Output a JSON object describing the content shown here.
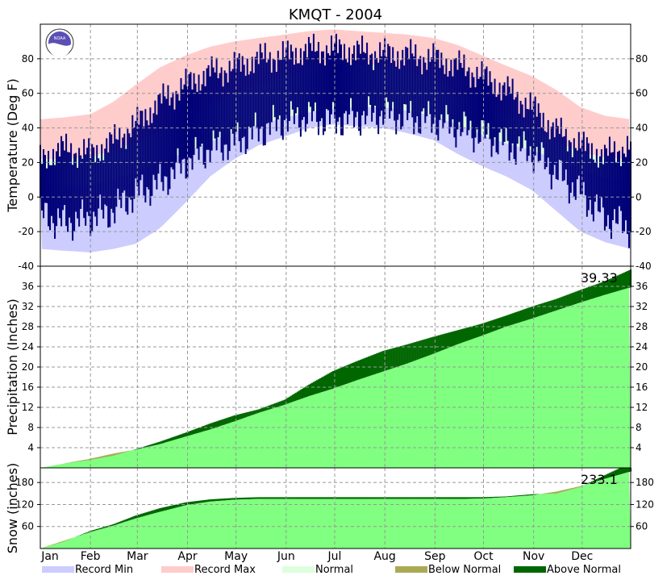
{
  "title": "KMQT - 2004",
  "colors": {
    "record_min": "#ccccff",
    "record_max": "#ffcccc",
    "normal": "#ddffdd",
    "observed": "#000077",
    "accum_normal": "#80ff80",
    "above_normal": "#006600",
    "below_normal": "#aaaa55",
    "grid": "#999999",
    "logo_blue": "#5b4fb5"
  },
  "logo": {
    "text": "NOAA",
    "icon": "noaa-logo"
  },
  "chart_data": [
    {
      "type": "area",
      "panel": "temperature",
      "ylabel": "Temperature (Deg F)",
      "ylim": [
        -40,
        100
      ],
      "yticks": [
        -40,
        -20,
        0,
        20,
        40,
        60,
        80
      ],
      "grid": true,
      "x": [
        1,
        15,
        32,
        46,
        60,
        75,
        91,
        106,
        121,
        136,
        152,
        167,
        182,
        197,
        213,
        228,
        244,
        259,
        274,
        289,
        305,
        320,
        335,
        350,
        366
      ],
      "series": [
        {
          "name": "Record Min",
          "role": "record_min",
          "values": [
            -30,
            -31,
            -32,
            -30,
            -27,
            -18,
            -3,
            12,
            22,
            30,
            35,
            40,
            42,
            41,
            40,
            37,
            33,
            25,
            18,
            12,
            4,
            -8,
            -20,
            -26,
            -30
          ]
        },
        {
          "name": "Record Max",
          "role": "record_max",
          "values": [
            45,
            46,
            48,
            55,
            65,
            75,
            82,
            87,
            90,
            92,
            94,
            96,
            97,
            96,
            95,
            94,
            92,
            88,
            82,
            76,
            70,
            62,
            52,
            47,
            45
          ]
        },
        {
          "name": "Normal",
          "role": "normal_low",
          "values": [
            8,
            7,
            7,
            10,
            14,
            20,
            26,
            32,
            38,
            42,
            46,
            49,
            51,
            52,
            52,
            50,
            47,
            42,
            36,
            31,
            27,
            22,
            16,
            11,
            8
          ]
        },
        {
          "name": "Normal",
          "role": "normal_high",
          "values": [
            22,
            22,
            23,
            27,
            32,
            38,
            46,
            54,
            60,
            65,
            70,
            74,
            76,
            77,
            76,
            73,
            68,
            61,
            55,
            49,
            41,
            32,
            26,
            23,
            22
          ]
        },
        {
          "name": "Observed low",
          "role": "observed_low",
          "values": [
            -10,
            -15,
            -12,
            -8,
            2,
            8,
            20,
            28,
            32,
            38,
            44,
            46,
            44,
            46,
            48,
            46,
            44,
            40,
            36,
            30,
            26,
            14,
            2,
            -12,
            -18
          ]
        },
        {
          "name": "Observed high",
          "role": "observed_high",
          "values": [
            22,
            28,
            25,
            32,
            42,
            55,
            65,
            72,
            75,
            80,
            82,
            85,
            86,
            84,
            83,
            82,
            80,
            76,
            70,
            62,
            52,
            38,
            30,
            24,
            30
          ]
        }
      ]
    },
    {
      "type": "area",
      "panel": "precipitation",
      "ylabel": "Precipitation (Inches)",
      "ylim": [
        0,
        40
      ],
      "yticks": [
        4,
        8,
        12,
        16,
        20,
        24,
        28,
        32,
        36
      ],
      "grid": true,
      "annotation": "39.33",
      "x": [
        1,
        15,
        32,
        46,
        60,
        75,
        91,
        106,
        121,
        136,
        152,
        167,
        182,
        197,
        213,
        228,
        244,
        259,
        274,
        289,
        305,
        320,
        335,
        350,
        366
      ],
      "series": [
        {
          "name": "Normal",
          "role": "normal_accum",
          "values": [
            0,
            0.8,
            1.8,
            2.8,
            3.6,
            4.7,
            6.2,
            7.6,
            9.2,
            10.9,
            12.5,
            14.2,
            15.7,
            17.4,
            19.1,
            20.7,
            22.6,
            24.5,
            26.2,
            28.0,
            29.6,
            31.2,
            32.8,
            34.3,
            35.8
          ]
        },
        {
          "name": "Observed",
          "role": "observed_accum",
          "values": [
            0,
            0.8,
            1.6,
            2.4,
            3.7,
            5.2,
            7.0,
            8.8,
            10.4,
            11.6,
            13.5,
            16.5,
            19.2,
            21.2,
            23.2,
            24.5,
            26.0,
            27.3,
            28.6,
            30.2,
            32.0,
            33.5,
            35.3,
            37.0,
            39.33
          ]
        }
      ]
    },
    {
      "type": "area",
      "panel": "snow",
      "ylabel": "Snow (inches)",
      "ylim": [
        0,
        220
      ],
      "yticks": [
        60,
        120,
        180
      ],
      "grid": true,
      "annotation": "233.1",
      "x": [
        1,
        15,
        32,
        46,
        60,
        75,
        91,
        106,
        121,
        136,
        152,
        167,
        182,
        197,
        213,
        228,
        244,
        259,
        274,
        289,
        305,
        320,
        335,
        350,
        366
      ],
      "series": [
        {
          "name": "Normal",
          "role": "normal_accum",
          "values": [
            0,
            20,
            45,
            62,
            82,
            100,
            118,
            128,
            133,
            135,
            135,
            135,
            135,
            135,
            135,
            135,
            135,
            135,
            136,
            140,
            145,
            155,
            170,
            190,
            210
          ]
        },
        {
          "name": "Observed",
          "role": "observed_accum",
          "values": [
            0,
            18,
            48,
            66,
            90,
            110,
            126,
            134,
            138,
            140,
            140,
            140,
            140,
            140,
            140,
            140,
            140,
            140,
            140,
            142,
            148,
            150,
            168,
            200,
            233.1
          ]
        }
      ]
    }
  ],
  "months": [
    "Jan",
    "Feb",
    "Mar",
    "Apr",
    "May",
    "Jun",
    "Jul",
    "Aug",
    "Sep",
    "Oct",
    "Nov",
    "Dec"
  ],
  "legend": [
    {
      "key": "record_min",
      "label": "Record Min"
    },
    {
      "key": "record_max",
      "label": "Record Max"
    },
    {
      "key": "normal",
      "label": "Normal"
    },
    {
      "key": "below_normal",
      "label": "Below Normal"
    },
    {
      "key": "above_normal",
      "label": "Above Normal"
    }
  ]
}
